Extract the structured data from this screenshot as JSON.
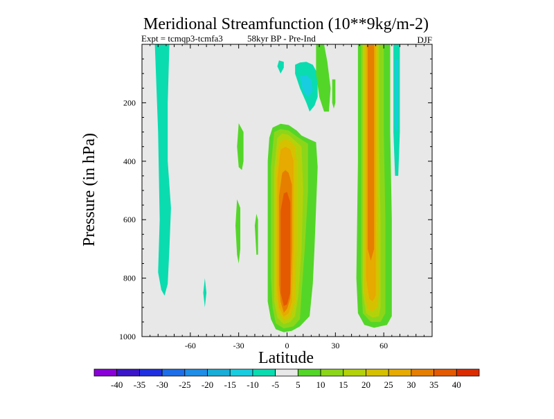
{
  "chart_data": {
    "type": "contour",
    "title": "Meridional Streamfunction (10**9kg/m-2)",
    "subtitle_left": "Expt = tcmqp3-tcmfa3",
    "subtitle_center": "58kyr BP - Pre-Ind",
    "season": "DJF",
    "xlabel": "Latitude",
    "ylabel": "Pressure (in hPa)",
    "xlim": [
      -90,
      90
    ],
    "ylim": [
      0,
      1000
    ],
    "x_reversed": false,
    "y_reversed": true,
    "xticks": [
      -60,
      -30,
      0,
      30,
      60
    ],
    "yticks": [
      200,
      400,
      600,
      800,
      1000
    ],
    "background": "#e8e8e8",
    "colorbar": {
      "levels": [
        -40,
        -35,
        -30,
        -25,
        -20,
        -15,
        -10,
        -5,
        5,
        10,
        15,
        20,
        25,
        30,
        35,
        40
      ],
      "colors": [
        "#8a00d8",
        "#3a16c8",
        "#2030e0",
        "#1e6ee8",
        "#1e8ee8",
        "#19aed8",
        "#19cde0",
        "#0adcb0",
        "#e8e8e8",
        "#54d628",
        "#8cd619",
        "#b4d20a",
        "#d6c100",
        "#e6aa00",
        "#e67f00",
        "#e45a00",
        "#db2c00"
      ]
    },
    "regions": [
      {
        "name": "nh-cell-outer",
        "value": 7,
        "polygon": [
          [
            -2,
            985
          ],
          [
            -7,
            975
          ],
          [
            -10,
            940
          ],
          [
            -12,
            880
          ],
          [
            -12,
            800
          ],
          [
            -12,
            400
          ],
          [
            -11,
            320
          ],
          [
            -9,
            285
          ],
          [
            -4,
            272
          ],
          [
            1,
            276
          ],
          [
            6,
            295
          ],
          [
            9,
            312
          ],
          [
            14,
            325
          ],
          [
            18,
            335
          ],
          [
            19,
            420
          ],
          [
            18,
            560
          ],
          [
            17,
            700
          ],
          [
            16,
            820
          ],
          [
            14,
            930
          ],
          [
            8,
            965
          ],
          [
            3,
            980
          ]
        ]
      },
      {
        "name": "nh-cell-l2",
        "value": 12,
        "polygon": [
          [
            -2,
            972
          ],
          [
            -7,
            955
          ],
          [
            -9,
            900
          ],
          [
            -10,
            800
          ],
          [
            -10,
            420
          ],
          [
            -8,
            300
          ],
          [
            -4,
            290
          ],
          [
            1,
            295
          ],
          [
            6,
            315
          ],
          [
            10,
            330
          ],
          [
            13,
            340
          ],
          [
            13,
            500
          ],
          [
            11,
            700
          ],
          [
            9,
            850
          ],
          [
            8,
            940
          ],
          [
            4,
            965
          ]
        ]
      },
      {
        "name": "nh-cell-l3",
        "value": 17,
        "polygon": [
          [
            -2,
            958
          ],
          [
            -6,
            935
          ],
          [
            -8,
            880
          ],
          [
            -8,
            800
          ],
          [
            -8,
            430
          ],
          [
            -6,
            320
          ],
          [
            -3,
            305
          ],
          [
            1,
            310
          ],
          [
            5,
            330
          ],
          [
            9,
            350
          ],
          [
            10,
            500
          ],
          [
            9,
            700
          ],
          [
            7,
            860
          ],
          [
            5,
            930
          ],
          [
            2,
            950
          ]
        ]
      },
      {
        "name": "nh-cell-l4",
        "value": 22,
        "polygon": [
          [
            -2,
            945
          ],
          [
            -5,
            920
          ],
          [
            -7,
            860
          ],
          [
            -7,
            440
          ],
          [
            -5,
            340
          ],
          [
            -2,
            325
          ],
          [
            2,
            330
          ],
          [
            5,
            350
          ],
          [
            6,
            400
          ],
          [
            6,
            700
          ],
          [
            5,
            880
          ],
          [
            2,
            935
          ]
        ]
      },
      {
        "name": "nh-cell-l5",
        "value": 27,
        "polygon": [
          [
            -2,
            932
          ],
          [
            -5,
            900
          ],
          [
            -6,
            840
          ],
          [
            -6,
            460
          ],
          [
            -4,
            360
          ],
          [
            -1,
            350
          ],
          [
            2,
            360
          ],
          [
            4,
            400
          ],
          [
            4,
            700
          ],
          [
            3,
            880
          ],
          [
            1,
            920
          ]
        ]
      },
      {
        "name": "nh-cell-l6",
        "value": 32,
        "polygon": [
          [
            -2,
            918
          ],
          [
            -4,
            880
          ],
          [
            -5,
            820
          ],
          [
            -5,
            520
          ],
          [
            -3,
            440
          ],
          [
            -1,
            430
          ],
          [
            1,
            440
          ],
          [
            3,
            480
          ],
          [
            3,
            700
          ],
          [
            2,
            870
          ],
          [
            0,
            905
          ]
        ]
      },
      {
        "name": "nh-cell-core",
        "value": 37,
        "polygon": [
          [
            -2,
            895
          ],
          [
            -4,
            850
          ],
          [
            -4,
            570
          ],
          [
            -2,
            510
          ],
          [
            0,
            505
          ],
          [
            2,
            540
          ],
          [
            2,
            850
          ],
          [
            0,
            890
          ]
        ]
      },
      {
        "name": "mid-lat-band-outer",
        "value": 7,
        "polygon": [
          [
            44,
            0
          ],
          [
            44,
            400
          ],
          [
            43,
            800
          ],
          [
            44,
            920
          ],
          [
            48,
            960
          ],
          [
            54,
            970
          ],
          [
            62,
            960
          ],
          [
            65,
            930
          ],
          [
            65,
            600
          ],
          [
            64,
            300
          ],
          [
            64,
            0
          ]
        ]
      },
      {
        "name": "mid-lat-band-l2",
        "value": 12,
        "polygon": [
          [
            46,
            0
          ],
          [
            46,
            800
          ],
          [
            47,
            920
          ],
          [
            52,
            950
          ],
          [
            58,
            950
          ],
          [
            61,
            920
          ],
          [
            61,
            600
          ],
          [
            60,
            300
          ],
          [
            60,
            0
          ]
        ]
      },
      {
        "name": "mid-lat-band-l3",
        "value": 17,
        "polygon": [
          [
            47,
            0
          ],
          [
            47,
            850
          ],
          [
            49,
            920
          ],
          [
            53,
            935
          ],
          [
            57,
            930
          ],
          [
            58,
            900
          ],
          [
            58,
            600
          ],
          [
            57,
            300
          ],
          [
            57,
            0
          ]
        ]
      },
      {
        "name": "mid-lat-band-l4",
        "value": 22,
        "polygon": [
          [
            48,
            0
          ],
          [
            48,
            850
          ],
          [
            50,
            905
          ],
          [
            53,
            915
          ],
          [
            56,
            900
          ],
          [
            57,
            850
          ],
          [
            56,
            500
          ],
          [
            56,
            0
          ]
        ]
      },
      {
        "name": "mid-lat-band-l5",
        "value": 27,
        "polygon": [
          [
            49,
            0
          ],
          [
            49,
            800
          ],
          [
            51,
            870
          ],
          [
            53,
            880
          ],
          [
            55,
            860
          ],
          [
            55,
            0
          ]
        ]
      },
      {
        "name": "mid-lat-band-core",
        "value": 32,
        "polygon": [
          [
            50,
            0
          ],
          [
            50,
            700
          ],
          [
            52,
            740
          ],
          [
            54,
            700
          ],
          [
            54,
            0
          ]
        ]
      },
      {
        "name": "sh-negative-strip",
        "value": -7,
        "polygon": [
          [
            -82,
            0
          ],
          [
            -80,
            300
          ],
          [
            -79,
            600
          ],
          [
            -80,
            780
          ],
          [
            -78,
            840
          ],
          [
            -76,
            860
          ],
          [
            -74,
            820
          ],
          [
            -73,
            700
          ],
          [
            -72,
            560
          ],
          [
            -74,
            400
          ],
          [
            -74,
            200
          ],
          [
            -73,
            0
          ]
        ]
      },
      {
        "name": "sh-negative-dot",
        "value": -7,
        "polygon": [
          [
            -51,
            800
          ],
          [
            -52,
            850
          ],
          [
            -51,
            900
          ],
          [
            -50,
            850
          ]
        ]
      },
      {
        "name": "upper-negative-blob",
        "value": -7,
        "polygon": [
          [
            5,
            70
          ],
          [
            5,
            100
          ],
          [
            8,
            150
          ],
          [
            12,
            200
          ],
          [
            14,
            230
          ],
          [
            17,
            210
          ],
          [
            19,
            180
          ],
          [
            19,
            100
          ],
          [
            16,
            70
          ],
          [
            12,
            60
          ],
          [
            8,
            62
          ]
        ]
      },
      {
        "name": "upper-negative-blob-inner",
        "value": -12,
        "polygon": [
          [
            8,
            110
          ],
          [
            10,
            160
          ],
          [
            13,
            180
          ],
          [
            16,
            160
          ],
          [
            15,
            120
          ],
          [
            12,
            105
          ]
        ]
      },
      {
        "name": "upper-negative-dot",
        "value": -7,
        "polygon": [
          [
            -5,
            55
          ],
          [
            -6,
            75
          ],
          [
            -4,
            100
          ],
          [
            -2,
            80
          ],
          [
            -2,
            60
          ]
        ]
      },
      {
        "name": "upper-positive-left",
        "value": 7,
        "polygon": [
          [
            -30,
            270
          ],
          [
            -31,
            350
          ],
          [
            -30,
            420
          ],
          [
            -28,
            430
          ],
          [
            -27,
            400
          ],
          [
            -27,
            300
          ]
        ]
      },
      {
        "name": "upper-positive-tick",
        "value": 7,
        "polygon": [
          [
            -19,
            580
          ],
          [
            -20,
            620
          ],
          [
            -19,
            720
          ],
          [
            -18,
            720
          ],
          [
            -18,
            600
          ]
        ]
      },
      {
        "name": "upper-right-green",
        "value": 7,
        "polygon": [
          [
            18,
            0
          ],
          [
            18,
            100
          ],
          [
            20,
            180
          ],
          [
            23,
            230
          ],
          [
            26,
            230
          ],
          [
            27,
            150
          ],
          [
            25,
            60
          ],
          [
            23,
            0
          ]
        ]
      },
      {
        "name": "right-edge-negative",
        "value": -7,
        "polygon": [
          [
            66,
            0
          ],
          [
            66,
            300
          ],
          [
            67,
            450
          ],
          [
            69,
            450
          ],
          [
            70,
            300
          ],
          [
            70,
            0
          ]
        ]
      },
      {
        "name": "right-edge-negative-inner",
        "value": -12,
        "polygon": [
          [
            67,
            50
          ],
          [
            67,
            280
          ],
          [
            68,
            300
          ],
          [
            69,
            250
          ],
          [
            69,
            50
          ]
        ]
      },
      {
        "name": "center-left-strip",
        "value": 7,
        "polygon": [
          [
            -31,
            530
          ],
          [
            -32,
            620
          ],
          [
            -31,
            720
          ],
          [
            -30,
            750
          ],
          [
            -29,
            700
          ],
          [
            -29,
            560
          ]
        ]
      },
      {
        "name": "right-green-tick",
        "value": 7,
        "polygon": [
          [
            28,
            120
          ],
          [
            28,
            200
          ],
          [
            29,
            220
          ],
          [
            30,
            200
          ],
          [
            30,
            120
          ]
        ]
      }
    ]
  }
}
